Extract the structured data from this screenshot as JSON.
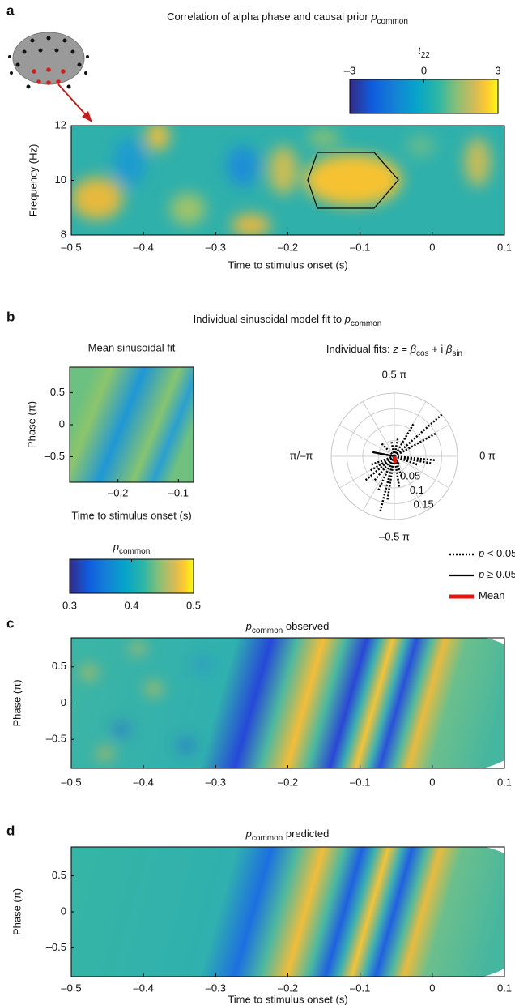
{
  "chart_data": [
    {
      "type": "heatmap",
      "panel": "a",
      "title": "Correlation of alpha phase and causal prior ",
      "title_var": "p",
      "title_sub": "common",
      "title_order": "text-first",
      "xlabel": "Time to stimulus onset (s)",
      "ylabel": "Frequency (Hz)",
      "xlim": [
        -0.5,
        0.1
      ],
      "xticks": [
        {
          "value": -0.5,
          "label": "–0.5"
        },
        {
          "value": -0.4,
          "label": "–0.4"
        },
        {
          "value": -0.3,
          "label": "–0.3"
        },
        {
          "value": -0.2,
          "label": "–0.2"
        },
        {
          "value": -0.1,
          "label": "–0.1"
        },
        0,
        0.1
      ],
      "ylim": [
        8,
        12
      ],
      "yticks": [
        8,
        10,
        12
      ],
      "colorbar": {
        "label_var": "t",
        "label_sub": "22",
        "lim": [
          -3,
          3
        ],
        "ticks": [
          {
            "value": -3,
            "label": "–3"
          },
          0,
          3
        ]
      }
    },
    {
      "type": "heatmap",
      "panel": "b",
      "title": "Individual sinusoidal model fit to ",
      "title_var": "p",
      "title_sub": "common",
      "title_order": "text-first",
      "subtitle": "Mean sinusoidal fit",
      "xlabel": "Time to stimulus onset (s)",
      "ylabel": "Phase (π)",
      "xlim": [
        -0.28,
        -0.075
      ],
      "xticks": [
        {
          "value": -0.2,
          "label": "–0.2"
        },
        {
          "value": -0.1,
          "label": "–0.1"
        }
      ],
      "ylim": [
        -0.9,
        0.9
      ],
      "yticks": [
        {
          "value": -0.5,
          "label": "–0.5"
        },
        0,
        0.5
      ],
      "colorbar": {
        "label_var": "p",
        "label_sub": "common",
        "lim": [
          0.3,
          0.5
        ],
        "ticks": [
          0.3,
          0.4,
          0.5
        ]
      }
    },
    {
      "type": "polar",
      "title_parts": [
        "Individual fits: ",
        "z",
        " = ",
        "β",
        "cos",
        " + i ",
        "β",
        "sin"
      ],
      "angle_labels": [
        {
          "value": 0.5,
          "label": "0.5 π"
        },
        {
          "value": 1,
          "label": "π/–π"
        },
        {
          "value": 0,
          "label": "0 π"
        },
        {
          "value": -0.5,
          "label": "–0.5 π"
        }
      ],
      "rlim": [
        0,
        0.2
      ],
      "rticks": [
        0.05,
        0.1,
        0.15
      ],
      "series": [
        {
          "name_var": "p",
          "name": " < 0.05",
          "style": "dotted",
          "color": "#000000",
          "angle": [
            0.23,
            0.16,
            0.33,
            0.44,
            0.56,
            -0.03,
            -0.06,
            -0.11,
            -0.58,
            -0.55,
            -0.64,
            -0.72,
            -0.78,
            -0.83,
            -0.89,
            0.94,
            0.75,
            -0.39,
            -0.45
          ],
          "r": [
            0.2,
            0.15,
            0.12,
            0.06,
            0.05,
            0.13,
            0.12,
            0.08,
            0.18,
            0.14,
            0.12,
            0.1,
            0.12,
            0.09,
            0.08,
            0.05,
            0.06,
            0.07,
            0.1
          ]
        },
        {
          "name_var": "p",
          "name": " ≥ 0.05",
          "style": "solid",
          "color": "#000000",
          "angle": [
            0.94,
            -0.33
          ],
          "r": [
            0.07,
            0.03
          ]
        },
        {
          "name": "Mean",
          "style": "thick",
          "color": "#e8130f",
          "angle": [
            -0.45
          ],
          "r": [
            0.02
          ]
        }
      ]
    },
    {
      "type": "heatmap",
      "panel": "c",
      "title": " observed",
      "title_var": "p",
      "title_sub": "common",
      "title_order": "var-first",
      "ylabel": "Phase (π)",
      "xlim": [
        -0.5,
        0.1
      ],
      "xticks": [
        {
          "value": -0.5,
          "label": "–0.5"
        },
        {
          "value": -0.4,
          "label": "–0.4"
        },
        {
          "value": -0.3,
          "label": "–0.3"
        },
        {
          "value": -0.2,
          "label": "–0.2"
        },
        {
          "value": -0.1,
          "label": "–0.1"
        },
        0,
        0.1
      ],
      "ylim": [
        -0.9,
        0.9
      ],
      "yticks": [
        {
          "value": -0.5,
          "label": "–0.5"
        },
        0,
        0.5
      ]
    },
    {
      "type": "heatmap",
      "panel": "d",
      "title": " predicted",
      "title_var": "p",
      "title_sub": "common",
      "title_order": "var-first",
      "xlabel": "Time to stimulus onset (s)",
      "ylabel": "Phase (π)",
      "xlim": [
        -0.5,
        0.1
      ],
      "xticks": [
        {
          "value": -0.5,
          "label": "–0.5"
        },
        {
          "value": -0.4,
          "label": "–0.4"
        },
        {
          "value": -0.3,
          "label": "–0.3"
        },
        {
          "value": -0.2,
          "label": "–0.2"
        },
        {
          "value": -0.1,
          "label": "–0.1"
        },
        0,
        0.1
      ],
      "ylim": [
        -0.9,
        0.9
      ],
      "yticks": [
        {
          "value": -0.5,
          "label": "–0.5"
        },
        0,
        0.5
      ]
    }
  ]
}
